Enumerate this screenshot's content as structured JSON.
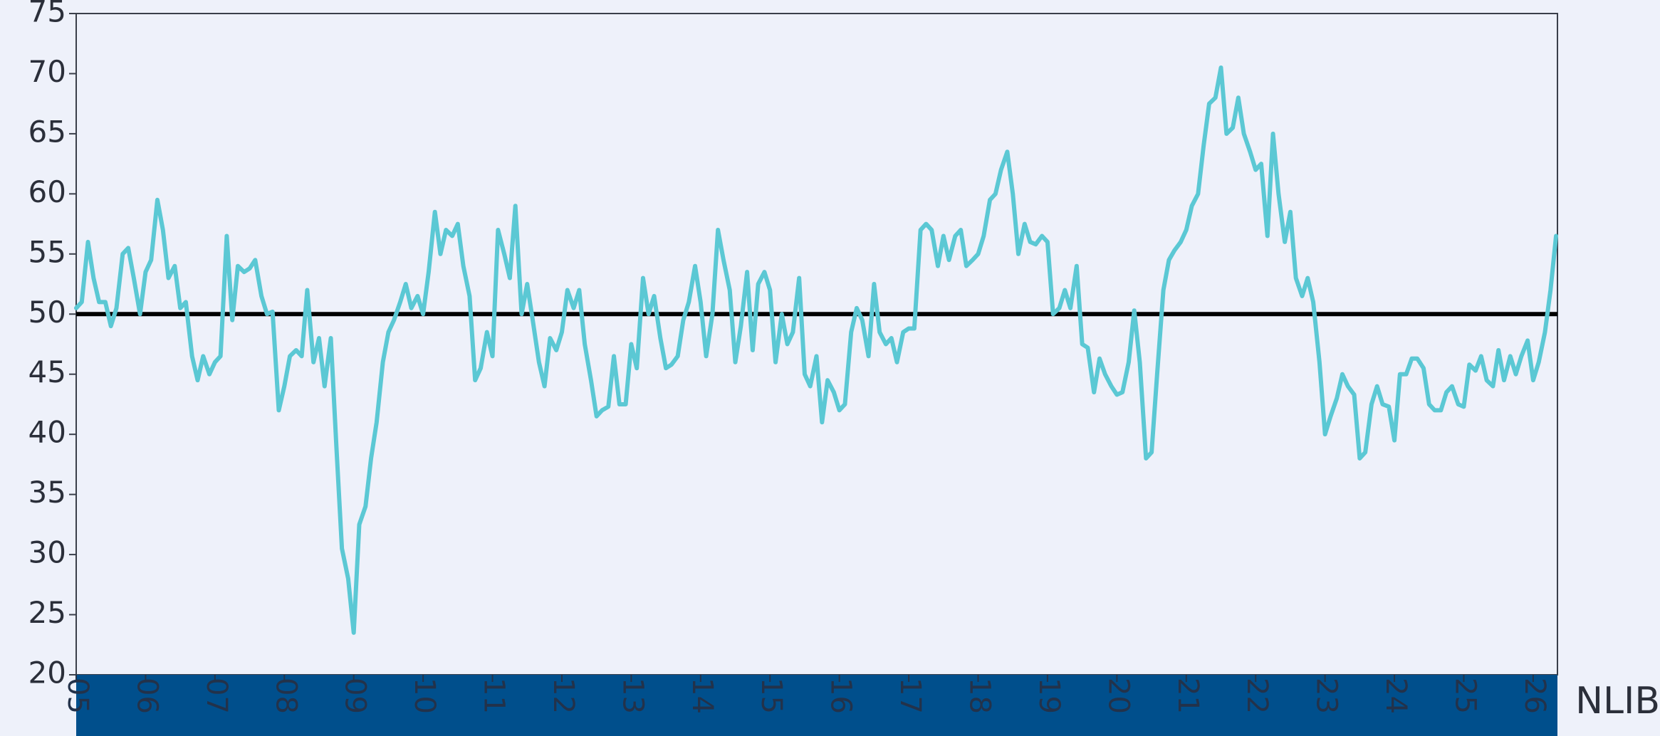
{
  "chart_data": {
    "type": "line",
    "source": "NLIB",
    "color": "#5bc8d4",
    "reference_line": 50,
    "xlim": [
      2005,
      2026.35
    ],
    "ylim": [
      20,
      75
    ],
    "yticks": [
      20,
      25,
      30,
      35,
      40,
      45,
      50,
      55,
      60,
      65,
      70,
      75
    ],
    "xticks": [
      {
        "value": 2005,
        "label": "05"
      },
      {
        "value": 2006,
        "label": "06"
      },
      {
        "value": 2007,
        "label": "07"
      },
      {
        "value": 2008,
        "label": "08"
      },
      {
        "value": 2009,
        "label": "09"
      },
      {
        "value": 2010,
        "label": "10"
      },
      {
        "value": 2011,
        "label": "11"
      },
      {
        "value": 2012,
        "label": "12"
      },
      {
        "value": 2013,
        "label": "13"
      },
      {
        "value": 2014,
        "label": "14"
      },
      {
        "value": 2015,
        "label": "15"
      },
      {
        "value": 2016,
        "label": "16"
      },
      {
        "value": 2017,
        "label": "17"
      },
      {
        "value": 2018,
        "label": "18"
      },
      {
        "value": 2019,
        "label": "19"
      },
      {
        "value": 2020,
        "label": "20"
      },
      {
        "value": 2021,
        "label": "21"
      },
      {
        "value": 2022,
        "label": "22"
      },
      {
        "value": 2023,
        "label": "23"
      },
      {
        "value": 2024,
        "label": "24"
      },
      {
        "value": 2025,
        "label": "25"
      },
      {
        "value": 2026,
        "label": "26"
      }
    ],
    "x": [
      2005,
      2005.08,
      2005.17,
      2005.25,
      2005.33,
      2005.42,
      2005.5,
      2005.58,
      2005.67,
      2005.75,
      2005.83,
      2005.92,
      2006,
      2006.08,
      2006.17,
      2006.25,
      2006.33,
      2006.42,
      2006.5,
      2006.58,
      2006.67,
      2006.75,
      2006.83,
      2006.92,
      2007,
      2007.08,
      2007.17,
      2007.25,
      2007.33,
      2007.42,
      2007.5,
      2007.58,
      2007.67,
      2007.75,
      2007.83,
      2007.92,
      2008,
      2008.08,
      2008.17,
      2008.25,
      2008.33,
      2008.42,
      2008.5,
      2008.58,
      2008.67,
      2008.75,
      2008.83,
      2008.92,
      2009,
      2009.08,
      2009.17,
      2009.25,
      2009.33,
      2009.42,
      2009.5,
      2009.58,
      2009.67,
      2009.75,
      2009.83,
      2009.92,
      2010,
      2010.08,
      2010.17,
      2010.25,
      2010.33,
      2010.42,
      2010.5,
      2010.58,
      2010.67,
      2010.75,
      2010.83,
      2010.92,
      2011,
      2011.08,
      2011.17,
      2011.25,
      2011.33,
      2011.42,
      2011.5,
      2011.58,
      2011.67,
      2011.75,
      2011.83,
      2011.92,
      2012,
      2012.08,
      2012.17,
      2012.25,
      2012.33,
      2012.42,
      2012.5,
      2012.58,
      2012.67,
      2012.75,
      2012.83,
      2012.92,
      2013,
      2013.08,
      2013.17,
      2013.25,
      2013.33,
      2013.42,
      2013.5,
      2013.58,
      2013.67,
      2013.75,
      2013.83,
      2013.92,
      2014,
      2014.08,
      2014.17,
      2014.25,
      2014.33,
      2014.42,
      2014.5,
      2014.58,
      2014.67,
      2014.75,
      2014.83,
      2014.92,
      2015,
      2015.08,
      2015.17,
      2015.25,
      2015.33,
      2015.42,
      2015.5,
      2015.58,
      2015.67,
      2015.75,
      2015.83,
      2015.92,
      2016,
      2016.08,
      2016.17,
      2016.25,
      2016.33,
      2016.42,
      2016.5,
      2016.58,
      2016.67,
      2016.75,
      2016.83,
      2016.92,
      2017,
      2017.08,
      2017.17,
      2017.25,
      2017.33,
      2017.42,
      2017.5,
      2017.58,
      2017.67,
      2017.75,
      2017.83,
      2017.92,
      2018,
      2018.08,
      2018.17,
      2018.25,
      2018.33,
      2018.42,
      2018.5,
      2018.58,
      2018.67,
      2018.75,
      2018.83,
      2018.92,
      2019,
      2019.08,
      2019.17,
      2019.25,
      2019.33,
      2019.42,
      2019.5,
      2019.58,
      2019.67,
      2019.75,
      2019.83,
      2019.92,
      2020,
      2020.08,
      2020.17,
      2020.25,
      2020.33,
      2020.42,
      2020.5,
      2020.58,
      2020.67,
      2020.75,
      2020.83,
      2020.92,
      2021,
      2021.08,
      2021.17,
      2021.25,
      2021.33,
      2021.42,
      2021.5,
      2021.58,
      2021.67,
      2021.75,
      2021.83,
      2021.92,
      2022,
      2022.08,
      2022.17,
      2022.25,
      2022.33,
      2022.42,
      2022.5,
      2022.58,
      2022.67,
      2022.75,
      2022.83,
      2022.92,
      2023,
      2023.08,
      2023.17,
      2023.25,
      2023.33,
      2023.42,
      2023.5,
      2023.58,
      2023.67,
      2023.75,
      2023.83,
      2023.92,
      2024,
      2024.08,
      2024.17,
      2024.25,
      2024.33,
      2024.42,
      2024.5,
      2024.58,
      2024.67,
      2024.75,
      2024.83,
      2024.92,
      2025,
      2025.08,
      2025.17,
      2025.25,
      2025.33,
      2025.42,
      2025.5,
      2025.58,
      2025.67,
      2025.75,
      2025.83,
      2025.92,
      2026,
      2026.08,
      2026.17,
      2026.25,
      2026.33
    ],
    "values": [
      50.5,
      51,
      56,
      53,
      51,
      51,
      49,
      50.5,
      55,
      55.5,
      53,
      50,
      53.5,
      54.5,
      59.5,
      57,
      53,
      54,
      50.5,
      51,
      46.5,
      44.5,
      46.5,
      45,
      46,
      46.5,
      56.5,
      49.5,
      54,
      53.5,
      53.8,
      54.5,
      51.5,
      50,
      50.2,
      42,
      44,
      46.5,
      47,
      46.5,
      52,
      46,
      48,
      44,
      48,
      39,
      30.5,
      28,
      23.5,
      32.5,
      34,
      38,
      41,
      46,
      48.5,
      49.5,
      51,
      52.5,
      50.5,
      51.5,
      50,
      53.5,
      58.5,
      55,
      57,
      56.5,
      57.5,
      54,
      51.5,
      44.5,
      45.5,
      48.5,
      46.5,
      57,
      55,
      53,
      59,
      50,
      52.5,
      49.5,
      46,
      44,
      48,
      47,
      48.5,
      52,
      50.5,
      52,
      47.5,
      44.5,
      41.5,
      42,
      42.3,
      46.5,
      42.5,
      42.5,
      47.5,
      45.5,
      53,
      50,
      51.5,
      48,
      45.5,
      45.8,
      46.5,
      49.5,
      51,
      54,
      51,
      46.5,
      50,
      57,
      54.5,
      52,
      46,
      49,
      53.5,
      47,
      52.5,
      53.5,
      52,
      46,
      50,
      47.5,
      48.5,
      53,
      45,
      44,
      46.5,
      41,
      44.5,
      43.5,
      42,
      42.5,
      48.5,
      50.5,
      49.5,
      46.5,
      52.5,
      48.5,
      47.5,
      48,
      46,
      48.5,
      48.8,
      48.8,
      57,
      57.5,
      57,
      54,
      56.5,
      54.5,
      56.5,
      57,
      54,
      54.5,
      55,
      56.5,
      59.5,
      60,
      62,
      63.5,
      60,
      55,
      57.5,
      56,
      55.8,
      56.5,
      56,
      50,
      50.5,
      52,
      50.5,
      54,
      47.5,
      47.2,
      43.5,
      46.3,
      45,
      44,
      43.3,
      43.5,
      46,
      50.3,
      46,
      38,
      38.5,
      45,
      52,
      54.5,
      55.3,
      56,
      57,
      59,
      60,
      64,
      67.5,
      68,
      70.5,
      65,
      65.5,
      68,
      65,
      63.5,
      62,
      62.5,
      56.5,
      65,
      60,
      56,
      58.5,
      53,
      51.5,
      53,
      51,
      46,
      40,
      41.5,
      43,
      45,
      44,
      43.3,
      38,
      38.5,
      42.5,
      44,
      42.5,
      42.3,
      39.5,
      45,
      45,
      46.3,
      46.3,
      45.5,
      42.5,
      42,
      42,
      43.5,
      44,
      42.5,
      42.3,
      45.8,
      45.3,
      46.5,
      44.5,
      44,
      47,
      44.5,
      46.5,
      45,
      46.5,
      47.8,
      44.5,
      46,
      48.5,
      52,
      56.5
    ]
  }
}
